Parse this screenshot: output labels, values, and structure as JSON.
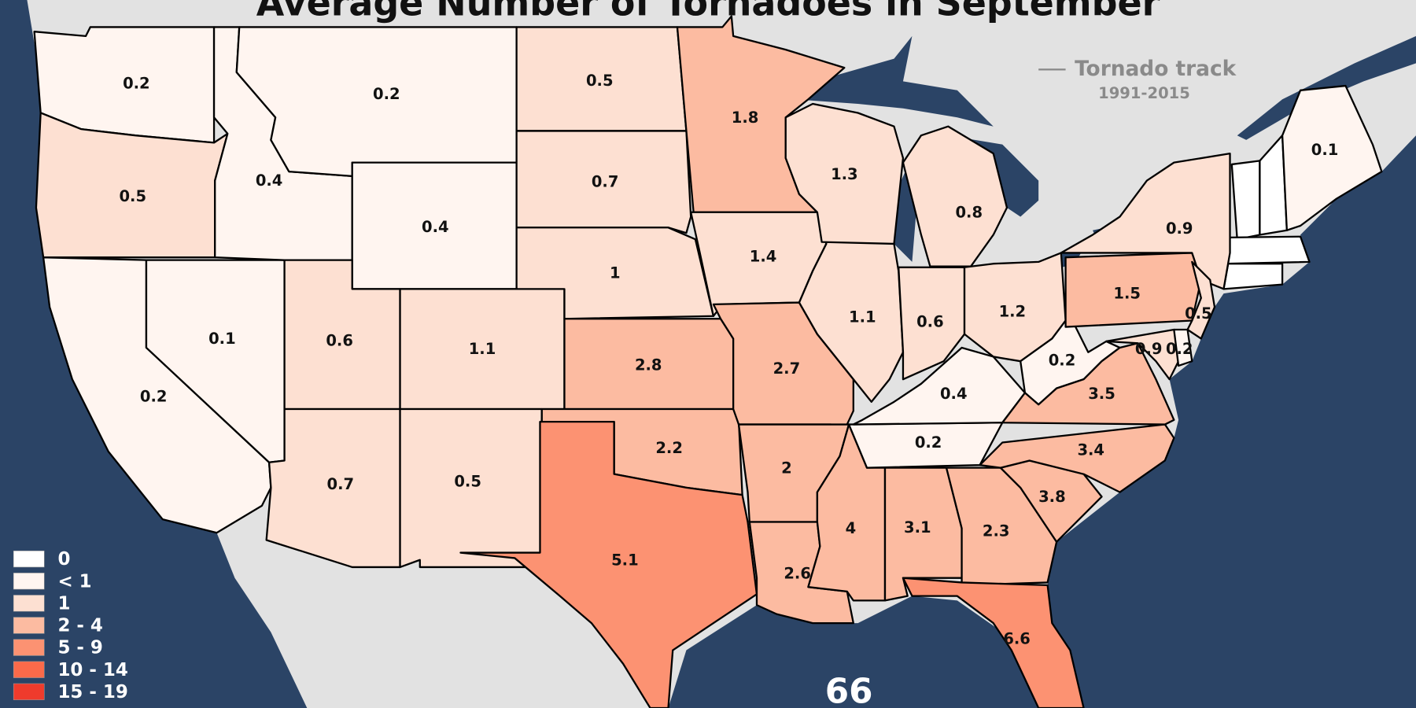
{
  "map": {
    "title": "Average Number of Tornadoes in September",
    "annotation": {
      "line_label": "Tornado track",
      "period": "1991-2015"
    },
    "total": 66,
    "legend": [
      {
        "label": "0",
        "color": "#ffffff"
      },
      {
        "label": "< 1",
        "color": "#fff5f0"
      },
      {
        "label": "1",
        "color": "#fde0d2"
      },
      {
        "label": "2 - 4",
        "color": "#fcbba1"
      },
      {
        "label": "5 - 9",
        "color": "#fc9272"
      },
      {
        "label": "10 - 14",
        "color": "#fb6a4a"
      },
      {
        "label": "15 - 19",
        "color": "#ef3b2c"
      }
    ],
    "regions": [
      {
        "value": 0.2
      },
      {
        "value": 0.5
      },
      {
        "value": 0.2
      },
      {
        "value": 0.1
      },
      {
        "value": 0.4
      },
      {
        "value": 0.2
      },
      {
        "value": 0.4
      },
      {
        "value": 0.6
      },
      {
        "value": 1.1
      },
      {
        "value": 0.7
      },
      {
        "value": 0.5
      },
      {
        "value": 0.5
      },
      {
        "value": 0.7
      },
      {
        "value": 1
      },
      {
        "value": 2.8
      },
      {
        "value": 2.2
      },
      {
        "value": 5.1
      },
      {
        "value": 1.8
      },
      {
        "value": 1.4
      },
      {
        "value": 2.7
      },
      {
        "value": 2
      },
      {
        "value": 2.6
      },
      {
        "value": 4
      },
      {
        "value": 3.1
      },
      {
        "value": 2.3
      },
      {
        "value": 6.6
      },
      {
        "value": 3.8
      },
      {
        "value": 3.4
      },
      {
        "value": 0.2
      },
      {
        "value": 0.4
      },
      {
        "value": 1.1
      },
      {
        "value": 1.3
      },
      {
        "value": 0.8
      },
      {
        "value": 0.6
      },
      {
        "value": 1.2
      },
      {
        "value": 0.2
      },
      {
        "value": 3.5
      },
      {
        "value": 1.5
      },
      {
        "value": 0.9
      },
      {
        "value": 0.5
      },
      {
        "value": 0.9
      },
      {
        "value": 0.2
      },
      {
        "value": 0.1
      }
    ]
  }
}
